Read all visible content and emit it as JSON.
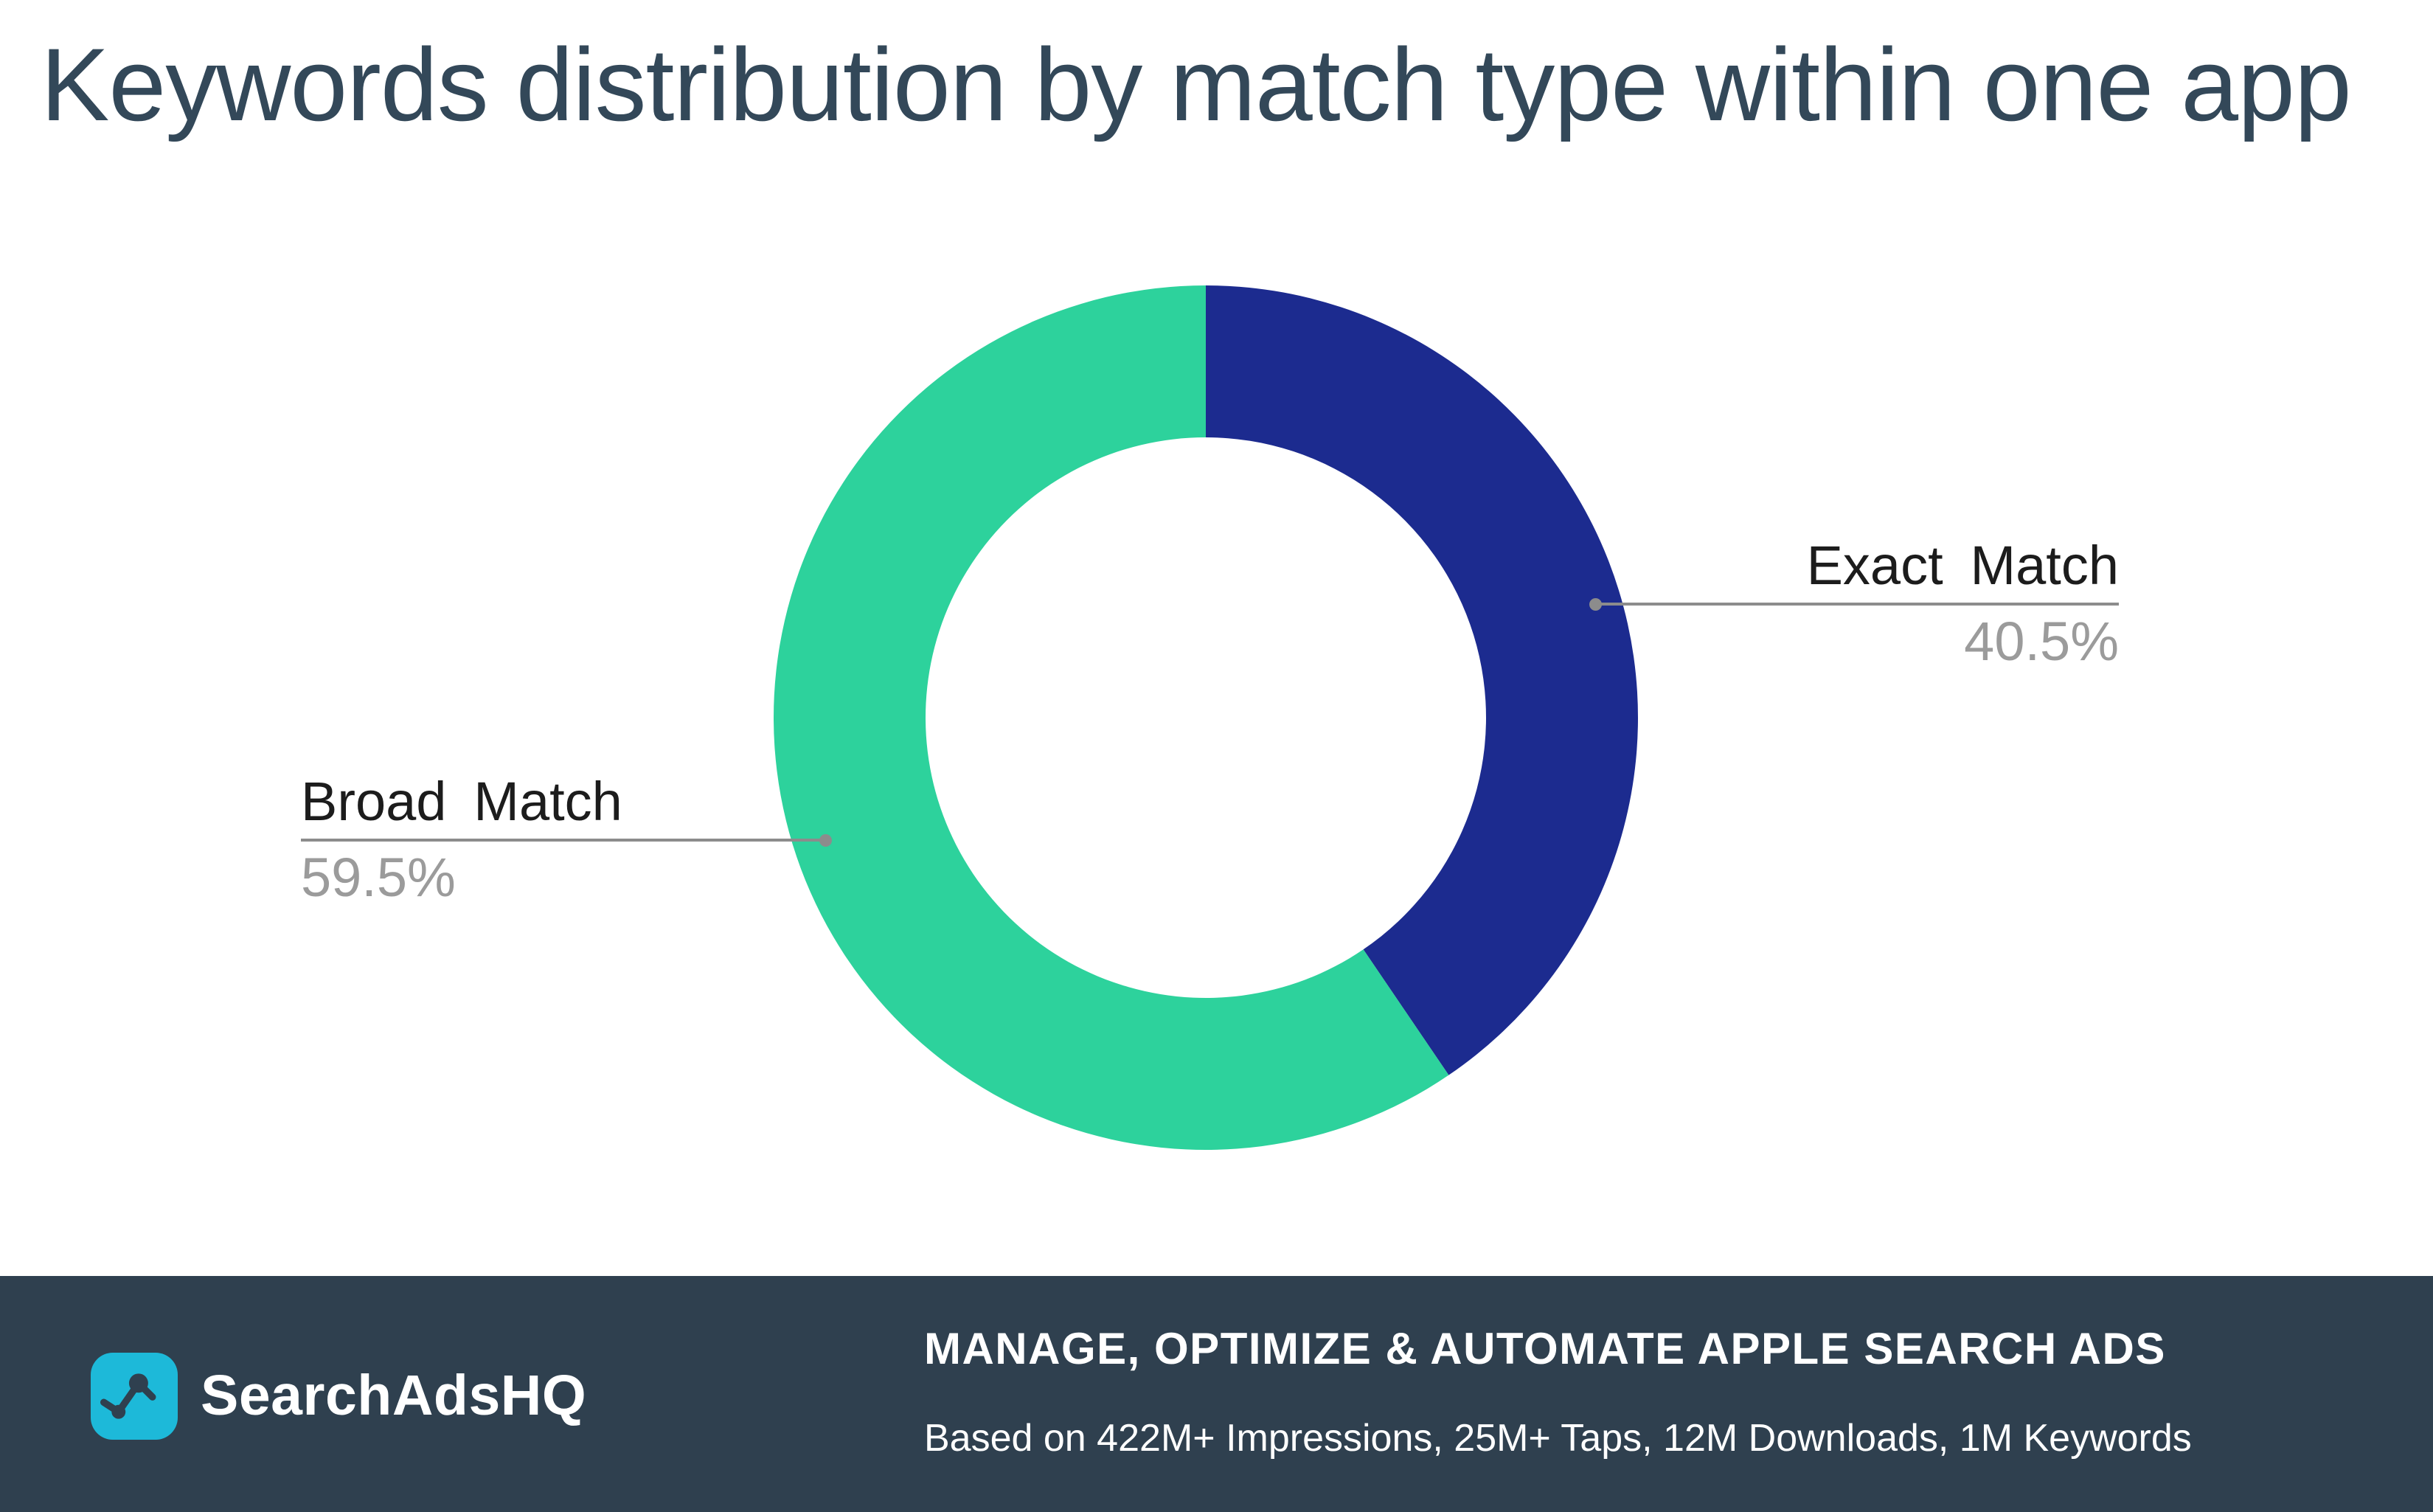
{
  "header": {
    "title": "Keywords distribution by match type within one app"
  },
  "chart_data": {
    "type": "pie",
    "donut": true,
    "labels": [
      "Exact Match",
      "Broad Match"
    ],
    "values": [
      40.5,
      59.5
    ],
    "unit": "%",
    "colors": [
      "#1c2b8f",
      "#2dd29c"
    ],
    "start_angle_deg": 0,
    "direction": "clockwise",
    "legend_position": "callout-labels",
    "annotations": [
      {
        "label": "Exact Match",
        "value_text": "40.5%"
      },
      {
        "label": "Broad Match",
        "value_text": "59.5%"
      }
    ]
  },
  "footer": {
    "brand": "SearchAdsHQ",
    "logo_icon": "line-chart-icon",
    "logo_color": "#1db9d9",
    "bar_color": "#2f404f",
    "tagline": "MANAGE, OPTIMIZE & AUTOMATE APPLE SEARCH ADS",
    "subline": "Based on 422M+ Impressions, 25M+ Taps, 12M Downloads, 1M Keywords"
  },
  "palette": {
    "title_color": "#334859",
    "label_color": "#1c1c1c",
    "pct_color": "#9b9b9b",
    "leader_line_color": "#8c8c8c"
  }
}
